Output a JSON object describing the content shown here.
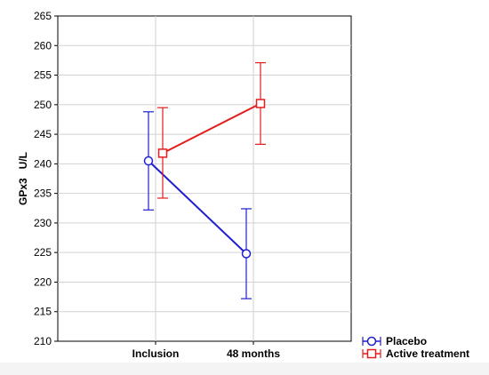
{
  "chart_data": {
    "type": "line",
    "title": "",
    "xlabel": "",
    "ylabel": "GPx3   U/L",
    "categories": [
      "Inclusion",
      "48 months"
    ],
    "ylim": [
      210,
      265
    ],
    "yticks": [
      210,
      215,
      220,
      225,
      230,
      235,
      240,
      245,
      250,
      255,
      260,
      265
    ],
    "grid": true,
    "legend_position": "bottom-right",
    "series": [
      {
        "name": "Placebo",
        "marker": "circle",
        "color": "#1f1fd0",
        "values": [
          240.5,
          224.8
        ],
        "error_low": [
          232.2,
          217.2
        ],
        "error_high": [
          248.8,
          232.4
        ]
      },
      {
        "name": "Active treatment",
        "marker": "square",
        "color": "#e41c1c",
        "values": [
          241.8,
          250.2
        ],
        "error_low": [
          234.2,
          243.3
        ],
        "error_high": [
          249.5,
          257.1
        ]
      }
    ]
  }
}
